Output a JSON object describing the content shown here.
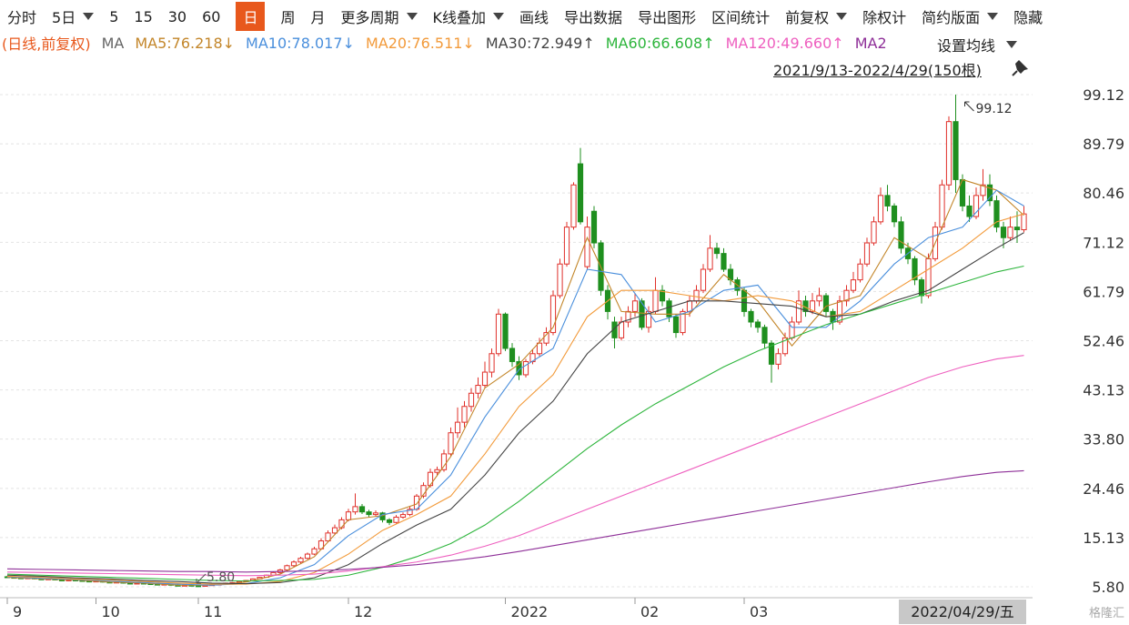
{
  "chart_data": {
    "type": "candlestick",
    "toolbar": [
      {
        "text": "分时"
      },
      {
        "text": "5日",
        "dropdown": true
      },
      {
        "text": "5"
      },
      {
        "text": "15"
      },
      {
        "text": "30"
      },
      {
        "text": "60"
      },
      {
        "text": "日",
        "selected": true
      },
      {
        "text": "周"
      },
      {
        "text": "月"
      },
      {
        "text": "更多周期",
        "dropdown": true
      },
      {
        "text": "K线叠加",
        "dropdown": true
      },
      {
        "text": "画线"
      },
      {
        "text": "导出数据"
      },
      {
        "text": "导出图形"
      },
      {
        "text": "区间统计"
      },
      {
        "text": "前复权",
        "dropdown": true
      },
      {
        "text": "除权计"
      },
      {
        "text": "简约版面",
        "dropdown": true
      },
      {
        "text": "隐藏"
      }
    ],
    "period_tag": "(日线,前复权)",
    "legend_prefix": "MA",
    "settings_button": "设置均线",
    "range_label": "2021/9/13-2022/4/29(150根)",
    "date_label": "2022/04/29/五",
    "watermark": "格隆汇",
    "up_color": "#e0302a",
    "down_color": "#1f8f1f",
    "candles": [
      [
        7.7,
        7.9,
        7.5,
        7.6
      ],
      [
        7.6,
        7.7,
        7.4,
        7.5
      ],
      [
        7.5,
        7.6,
        7.3,
        7.4
      ],
      [
        7.4,
        7.6,
        7.3,
        7.5
      ],
      [
        7.5,
        7.6,
        7.2,
        7.3
      ],
      [
        7.3,
        7.4,
        7.1,
        7.2
      ],
      [
        7.2,
        7.4,
        7.1,
        7.3
      ],
      [
        7.3,
        7.4,
        7.0,
        7.1
      ],
      [
        7.1,
        7.2,
        6.9,
        7.0
      ],
      [
        7.0,
        7.2,
        6.9,
        7.1
      ],
      [
        7.1,
        7.2,
        6.9,
        7.0
      ],
      [
        7.0,
        7.1,
        6.8,
        6.9
      ],
      [
        6.9,
        7.0,
        6.7,
        6.8
      ],
      [
        6.8,
        7.0,
        6.7,
        6.9
      ],
      [
        6.9,
        7.0,
        6.6,
        6.7
      ],
      [
        6.7,
        6.8,
        6.5,
        6.6
      ],
      [
        6.6,
        6.8,
        6.5,
        6.7
      ],
      [
        6.7,
        6.8,
        6.4,
        6.5
      ],
      [
        6.5,
        6.6,
        6.3,
        6.4
      ],
      [
        6.4,
        6.6,
        6.3,
        6.5
      ],
      [
        6.5,
        6.6,
        6.3,
        6.4
      ],
      [
        6.4,
        6.5,
        6.2,
        6.3
      ],
      [
        6.3,
        6.4,
        6.1,
        6.2
      ],
      [
        6.2,
        6.4,
        6.1,
        6.3
      ],
      [
        6.3,
        6.4,
        6.0,
        6.1
      ],
      [
        6.1,
        6.2,
        5.9,
        6.0
      ],
      [
        6.0,
        6.2,
        5.9,
        6.1
      ],
      [
        6.1,
        6.2,
        5.9,
        6.0
      ],
      [
        6.0,
        6.1,
        5.8,
        5.9
      ],
      [
        5.9,
        6.2,
        5.9,
        6.1
      ],
      [
        6.1,
        6.3,
        6.0,
        6.2
      ],
      [
        6.2,
        6.4,
        6.1,
        6.3
      ],
      [
        6.3,
        6.6,
        6.2,
        6.5
      ],
      [
        6.5,
        6.7,
        6.4,
        6.6
      ],
      [
        6.6,
        6.9,
        6.5,
        6.8
      ],
      [
        6.8,
        7.1,
        6.7,
        7.0
      ],
      [
        7.0,
        7.4,
        6.9,
        7.3
      ],
      [
        7.3,
        7.7,
        7.2,
        7.6
      ],
      [
        7.6,
        8.1,
        7.5,
        8.0
      ],
      [
        8.0,
        8.7,
        7.9,
        8.5
      ],
      [
        8.5,
        9.2,
        8.3,
        9.0
      ],
      [
        9.0,
        10.0,
        8.8,
        9.8
      ],
      [
        9.8,
        10.8,
        9.6,
        10.5
      ],
      [
        10.5,
        11.5,
        10.2,
        11.2
      ],
      [
        11.2,
        12.3,
        11.0,
        12.0
      ],
      [
        12.0,
        13.4,
        11.8,
        13.0
      ],
      [
        13.0,
        15.0,
        12.8,
        14.5
      ],
      [
        14.5,
        16.5,
        14.2,
        16.0
      ],
      [
        16.0,
        17.6,
        15.6,
        17.0
      ],
      [
        17.0,
        19.0,
        16.7,
        18.5
      ],
      [
        18.5,
        20.6,
        18.2,
        20.0
      ],
      [
        20.0,
        23.5,
        19.5,
        21.0
      ],
      [
        21.0,
        21.5,
        19.6,
        20.0
      ],
      [
        20.0,
        20.4,
        19.0,
        19.5
      ],
      [
        19.5,
        20.3,
        19.1,
        19.8
      ],
      [
        19.8,
        20.0,
        18.0,
        18.5
      ],
      [
        18.5,
        18.8,
        17.5,
        18.0
      ],
      [
        18.0,
        19.4,
        17.8,
        19.0
      ],
      [
        19.0,
        19.9,
        18.7,
        19.5
      ],
      [
        19.5,
        21.0,
        19.2,
        20.5
      ],
      [
        20.5,
        23.4,
        20.2,
        23.0
      ],
      [
        23.0,
        25.6,
        22.6,
        25.0
      ],
      [
        25.0,
        28.2,
        24.6,
        27.5
      ],
      [
        27.5,
        28.6,
        26.8,
        28.0
      ],
      [
        28.0,
        31.8,
        27.6,
        31.0
      ],
      [
        31.0,
        36.0,
        30.5,
        35.0
      ],
      [
        35.0,
        39.8,
        34.0,
        37.0
      ],
      [
        37.0,
        41.0,
        36.0,
        40.0
      ],
      [
        40.0,
        43.5,
        39.0,
        42.5
      ],
      [
        42.5,
        45.5,
        41.5,
        44.0
      ],
      [
        44.0,
        48.5,
        43.5,
        46.5
      ],
      [
        46.5,
        51.0,
        45.5,
        50.0
      ],
      [
        50.0,
        58.5,
        49.5,
        57.5
      ],
      [
        57.5,
        57.8,
        50.5,
        51.0
      ],
      [
        51.0,
        52.0,
        47.5,
        48.5
      ],
      [
        48.5,
        49.5,
        45.0,
        46.0
      ],
      [
        46.0,
        49.0,
        45.5,
        48.5
      ],
      [
        48.5,
        50.8,
        48.0,
        50.0
      ],
      [
        50.0,
        53.0,
        49.5,
        52.0
      ],
      [
        52.0,
        55.0,
        51.5,
        54.0
      ],
      [
        54.0,
        62.0,
        53.5,
        61.0
      ],
      [
        61.0,
        68.0,
        60.5,
        67.0
      ],
      [
        67.0,
        75.0,
        66.5,
        74.0
      ],
      [
        74.0,
        82.5,
        73.5,
        82.0
      ],
      [
        86.0,
        89.0,
        74.5,
        75.0
      ],
      [
        66.5,
        76.0,
        66.0,
        74.0
      ],
      [
        77.0,
        78.0,
        70.0,
        71.0
      ],
      [
        71.0,
        71.5,
        61.0,
        62.0
      ],
      [
        62.0,
        63.0,
        56.5,
        58.0
      ],
      [
        56.0,
        57.0,
        51.0,
        53.0
      ],
      [
        53.0,
        57.0,
        52.5,
        56.0
      ],
      [
        56.0,
        59.0,
        55.0,
        58.0
      ],
      [
        58.0,
        61.5,
        57.0,
        60.0
      ],
      [
        60.0,
        60.5,
        54.5,
        55.0
      ],
      [
        55.0,
        59.0,
        54.0,
        58.0
      ],
      [
        58.0,
        64.5,
        57.5,
        62.0
      ],
      [
        62.0,
        63.0,
        59.0,
        60.0
      ],
      [
        60.0,
        60.5,
        56.0,
        57.0
      ],
      [
        57.0,
        57.5,
        53.0,
        54.0
      ],
      [
        54.0,
        58.5,
        53.5,
        58.0
      ],
      [
        58.0,
        61.0,
        57.0,
        60.0
      ],
      [
        60.0,
        63.0,
        59.5,
        62.0
      ],
      [
        62.0,
        67.0,
        61.5,
        66.0
      ],
      [
        66.0,
        72.5,
        65.5,
        70.0
      ],
      [
        70.0,
        71.0,
        68.0,
        69.0
      ],
      [
        69.0,
        70.0,
        65.5,
        66.0
      ],
      [
        66.0,
        67.0,
        63.0,
        64.0
      ],
      [
        64.0,
        64.5,
        61.0,
        62.0
      ],
      [
        62.0,
        62.5,
        57.0,
        58.0
      ],
      [
        58.0,
        58.5,
        55.0,
        56.0
      ],
      [
        56.0,
        56.5,
        54.0,
        55.0
      ],
      [
        55.0,
        55.5,
        51.0,
        52.0
      ],
      [
        52.0,
        52.5,
        44.5,
        48.0
      ],
      [
        48.0,
        51.0,
        47.0,
        50.0
      ],
      [
        50.0,
        54.0,
        49.5,
        53.0
      ],
      [
        53.0,
        57.0,
        52.5,
        56.0
      ],
      [
        56.0,
        62.0,
        55.5,
        60.0
      ],
      [
        60.0,
        61.0,
        57.0,
        58.0
      ],
      [
        58.0,
        61.5,
        57.5,
        60.0
      ],
      [
        60.0,
        62.5,
        59.0,
        61.0
      ],
      [
        61.0,
        61.5,
        57.0,
        58.0
      ],
      [
        58.0,
        58.5,
        54.5,
        56.0
      ],
      [
        56.0,
        61.0,
        55.5,
        60.0
      ],
      [
        60.0,
        63.0,
        59.0,
        62.0
      ],
      [
        62.0,
        65.5,
        61.5,
        64.0
      ],
      [
        64.0,
        68.0,
        63.5,
        67.0
      ],
      [
        67.0,
        72.0,
        66.5,
        71.0
      ],
      [
        71.0,
        76.0,
        70.5,
        75.0
      ],
      [
        75.0,
        81.5,
        74.5,
        80.0
      ],
      [
        80.0,
        82.0,
        77.0,
        78.0
      ],
      [
        78.0,
        78.5,
        74.0,
        75.0
      ],
      [
        75.0,
        76.0,
        69.0,
        70.0
      ],
      [
        70.0,
        71.0,
        67.0,
        68.0
      ],
      [
        68.0,
        68.5,
        63.0,
        64.0
      ],
      [
        64.0,
        64.5,
        59.5,
        61.0
      ],
      [
        61.0,
        69.0,
        60.5,
        68.0
      ],
      [
        68.0,
        75.0,
        67.5,
        74.0
      ],
      [
        74.0,
        83.0,
        73.5,
        82.0
      ],
      [
        82.0,
        95.0,
        81.0,
        94.0
      ],
      [
        94.0,
        99.12,
        80.5,
        83.0
      ],
      [
        83.0,
        84.0,
        77.0,
        78.0
      ],
      [
        78.0,
        80.0,
        75.0,
        76.0
      ],
      [
        76.0,
        81.5,
        75.5,
        80.0
      ],
      [
        80.0,
        85.0,
        79.0,
        82.0
      ],
      [
        82.0,
        84.0,
        78.0,
        79.0
      ],
      [
        79.0,
        80.0,
        73.0,
        74.0
      ],
      [
        74.0,
        75.0,
        70.0,
        72.0
      ],
      [
        72.0,
        76.0,
        71.5,
        74.0
      ],
      [
        74.0,
        77.0,
        71.0,
        73.5
      ],
      [
        73.5,
        78.0,
        73.0,
        76.5
      ]
    ],
    "ma_x": [
      0,
      5,
      10,
      15,
      20,
      25,
      30,
      35,
      40,
      45,
      50,
      55,
      60,
      65,
      70,
      75,
      80,
      85,
      90,
      95,
      100,
      105,
      110,
      115,
      120,
      125,
      130,
      135,
      140,
      145,
      149
    ],
    "series": [
      {
        "legend": "MA5:76.218↓",
        "color": "#c3862a",
        "values": [
          7.6,
          7.3,
          7.1,
          6.7,
          6.5,
          6.1,
          6.1,
          6.7,
          8.2,
          11.5,
          18.5,
          19.3,
          21.5,
          30.5,
          43.5,
          48.0,
          55.0,
          72.0,
          58.0,
          57.5,
          57.5,
          65.0,
          60.0,
          51.5,
          59.0,
          61.0,
          72.0,
          68.0,
          83.0,
          81.0,
          76.218
        ]
      },
      {
        "legend": "MA10:78.017↓",
        "color": "#4a8fdc",
        "values": [
          7.7,
          7.4,
          7.2,
          6.9,
          6.6,
          6.3,
          6.1,
          6.4,
          7.5,
          10.0,
          15.5,
          19.5,
          20.5,
          27.0,
          38.0,
          47.0,
          51.0,
          66.0,
          65.0,
          56.0,
          58.0,
          62.0,
          63.0,
          55.0,
          55.0,
          60.0,
          67.0,
          72.0,
          74.0,
          81.0,
          78.017
        ]
      },
      {
        "legend": "MA20:76.511↓",
        "color": "#f29a3a",
        "values": [
          7.8,
          7.6,
          7.3,
          7.1,
          6.8,
          6.5,
          6.3,
          6.3,
          6.8,
          8.5,
          12.0,
          16.5,
          19.5,
          23.0,
          31.0,
          40.0,
          46.0,
          57.0,
          62.0,
          62.0,
          61.0,
          60.0,
          61.0,
          60.0,
          57.0,
          58.0,
          62.0,
          66.0,
          70.0,
          75.0,
          76.511
        ]
      },
      {
        "legend": "MA30:72.949↑",
        "color": "#444444",
        "values": [
          8.0,
          7.8,
          7.5,
          7.3,
          7.0,
          6.8,
          6.5,
          6.4,
          6.6,
          7.5,
          10.0,
          14.0,
          17.5,
          20.5,
          27.0,
          35.0,
          41.0,
          50.0,
          56.0,
          58.0,
          60.0,
          60.0,
          59.5,
          59.0,
          57.0,
          57.5,
          60.0,
          62.0,
          66.0,
          70.0,
          72.949
        ]
      },
      {
        "legend": "MA60:66.608↑",
        "color": "#2db53c",
        "values": [
          8.2,
          8.0,
          7.8,
          7.6,
          7.4,
          7.2,
          7.0,
          6.9,
          7.0,
          7.2,
          8.0,
          9.5,
          11.5,
          14.0,
          17.5,
          22.0,
          27.0,
          32.0,
          36.5,
          40.5,
          44.0,
          47.5,
          50.5,
          53.0,
          55.5,
          57.5,
          59.5,
          61.5,
          63.5,
          65.5,
          66.608
        ]
      },
      {
        "legend": "MA120:49.660↑",
        "color": "#ee5fbf",
        "values": [
          8.6,
          8.5,
          8.4,
          8.3,
          8.2,
          8.1,
          8.0,
          7.9,
          8.0,
          8.2,
          8.8,
          9.6,
          10.5,
          11.8,
          13.5,
          15.5,
          18.0,
          20.5,
          23.0,
          25.5,
          28.0,
          30.5,
          33.0,
          35.5,
          38.0,
          40.5,
          43.0,
          45.5,
          47.5,
          49.0,
          49.66
        ]
      },
      {
        "legend": "MA2",
        "color": "#8e2f98",
        "values": [
          9.2,
          9.1,
          9.0,
          8.9,
          8.8,
          8.7,
          8.7,
          8.6,
          8.7,
          8.8,
          9.1,
          9.5,
          10.0,
          10.7,
          11.5,
          12.5,
          13.6,
          14.7,
          15.8,
          16.9,
          18.0,
          19.1,
          20.2,
          21.3,
          22.4,
          23.5,
          24.6,
          25.7,
          26.7,
          27.5,
          27.8
        ]
      }
    ],
    "high_mark": 99.12,
    "low_mark": {
      "value": 5.8,
      "label": "5.80"
    },
    "ylim": [
      3.73,
      101.88
    ],
    "yticks": [
      99.12,
      89.79,
      80.46,
      71.12,
      61.79,
      52.46,
      43.13,
      {
        "value": 33.8,
        "label": "33.80"
      },
      24.46,
      15.13,
      {
        "value": 5.8,
        "label": "5.80"
      }
    ],
    "xlim": [
      -0.5,
      149.5
    ],
    "xticks": [
      {
        "value": 0,
        "label": "9"
      },
      {
        "value": 13,
        "label": "10"
      },
      {
        "value": 28,
        "label": "11"
      },
      {
        "value": 50,
        "label": "12"
      },
      {
        "value": 73,
        "label": "2022"
      },
      {
        "value": 92,
        "label": "02"
      },
      {
        "value": 108,
        "label": "03"
      }
    ],
    "grid": true
  }
}
